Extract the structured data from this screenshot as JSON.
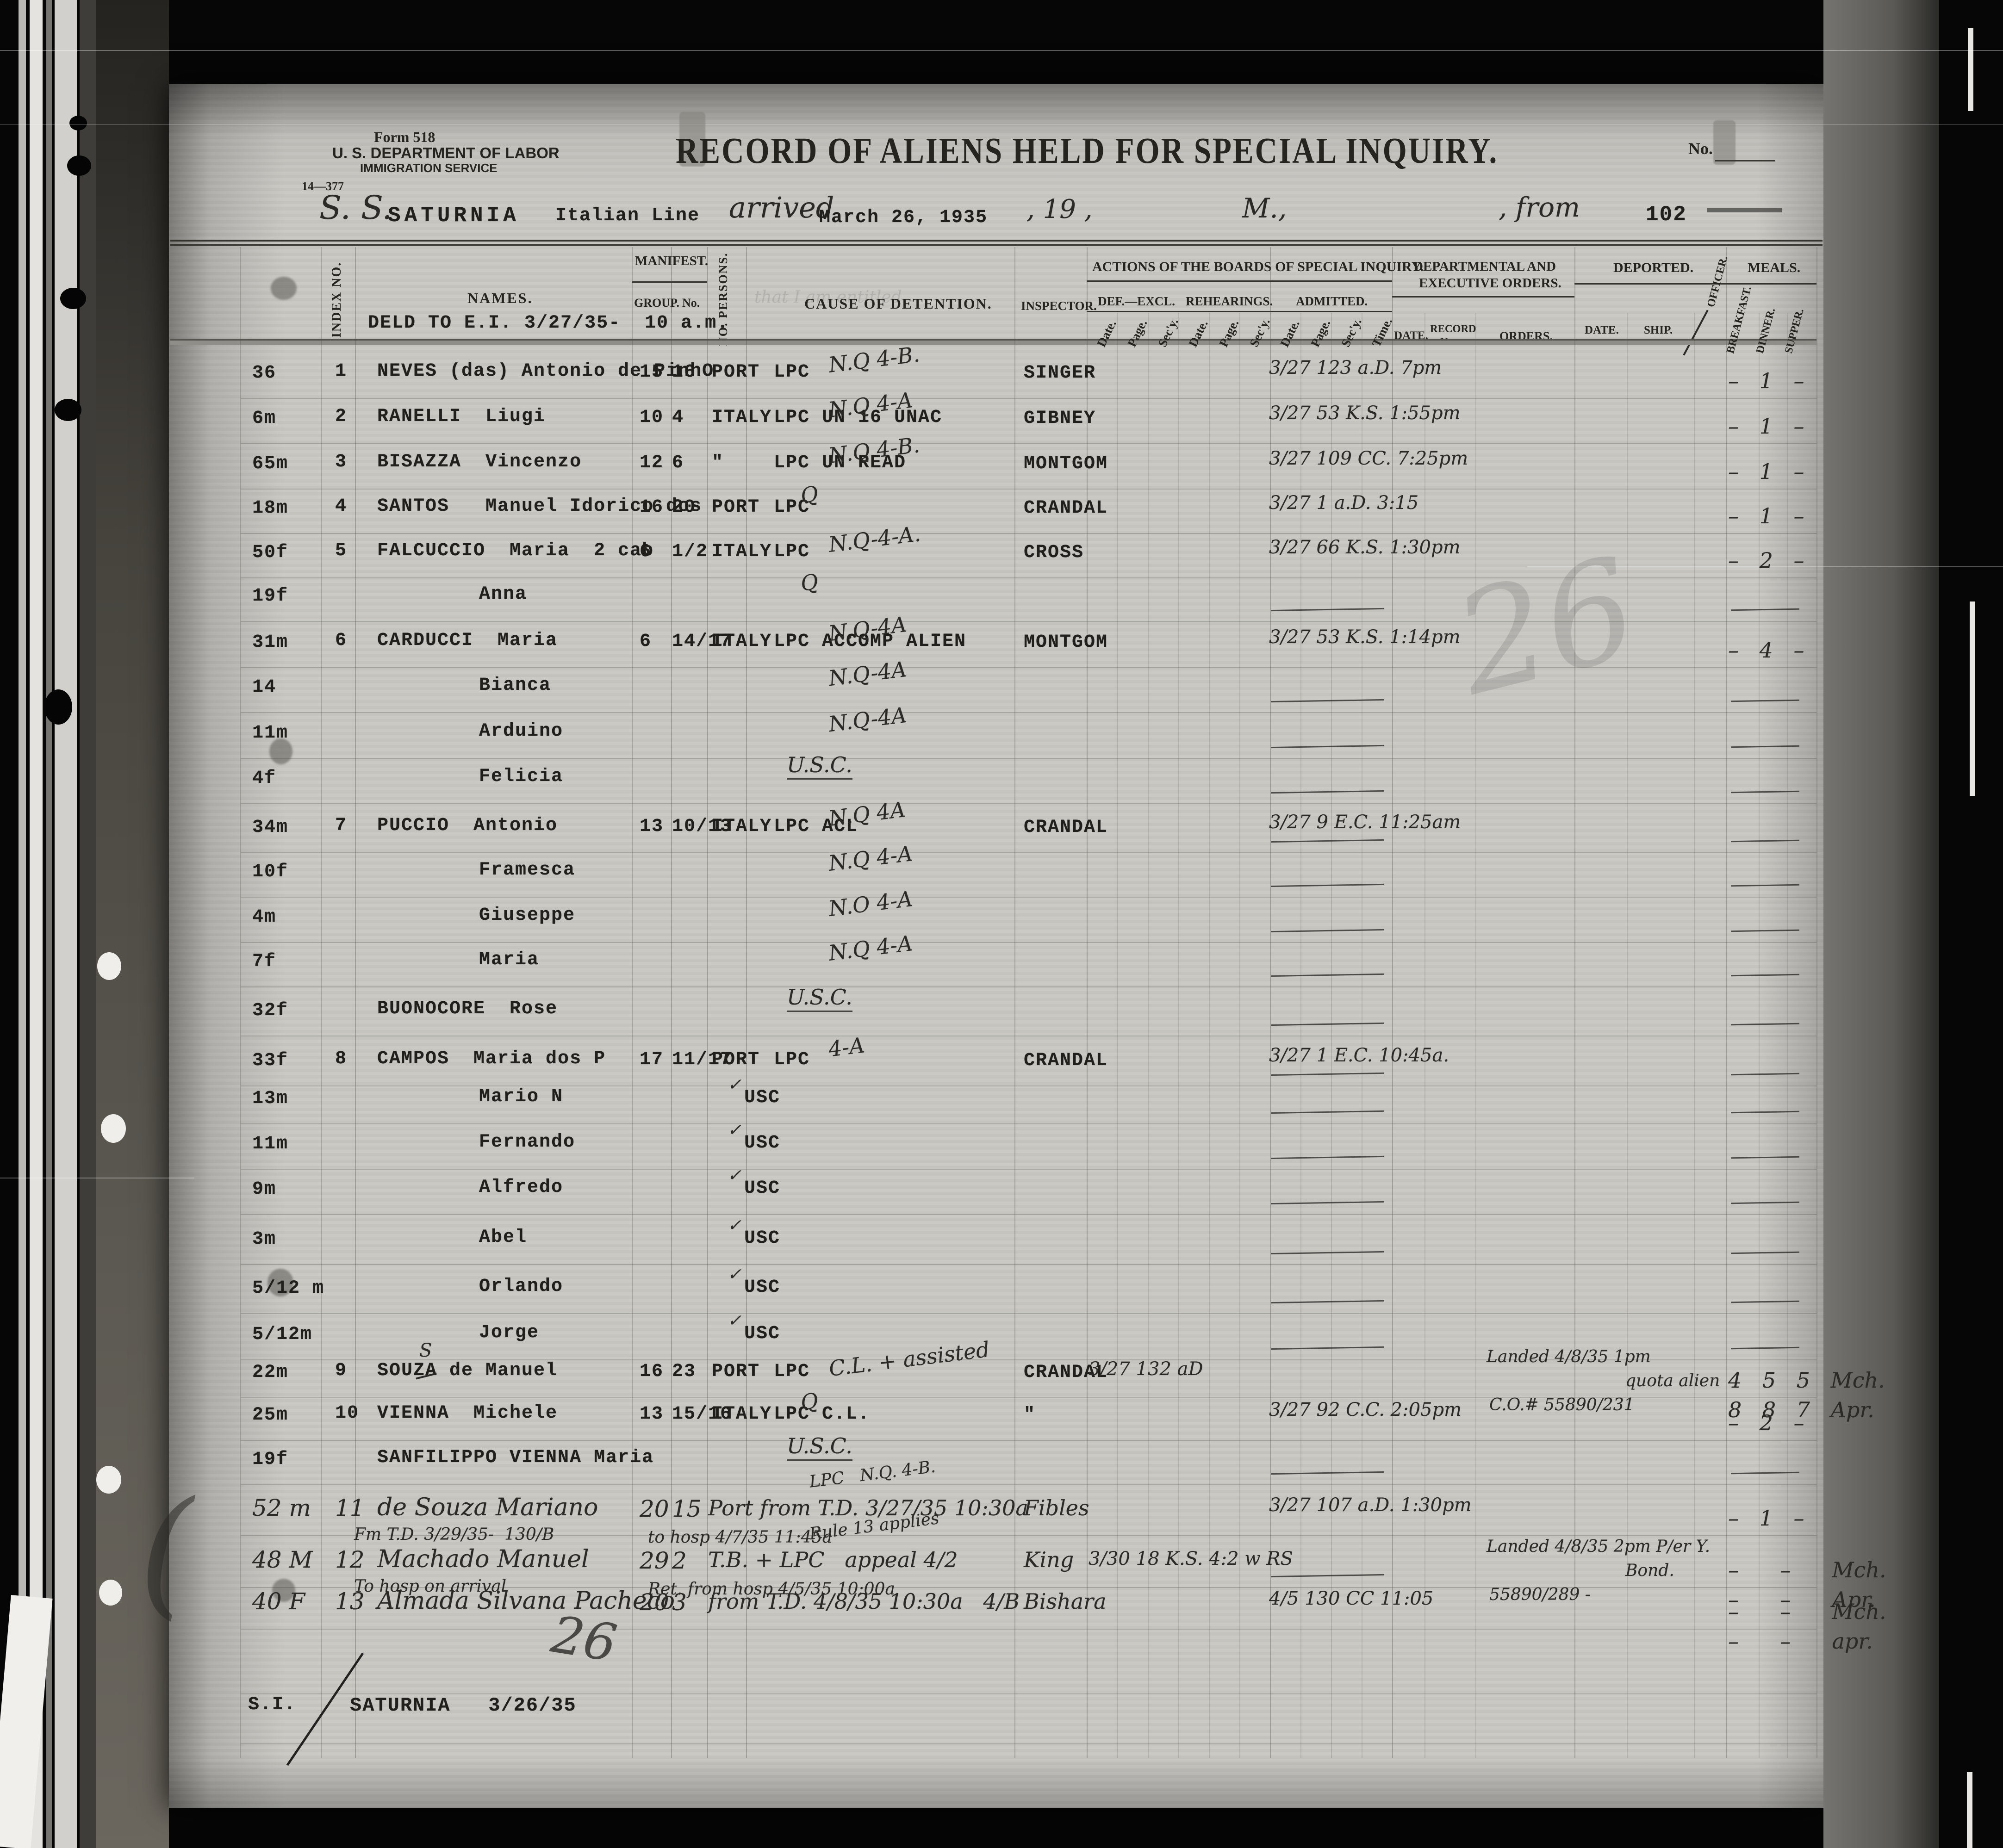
{
  "scan": {
    "form_lines": [
      "Form 518",
      "U. S. DEPARTMENT OF LABOR",
      "IMMIGRATION SERVICE"
    ],
    "form_number": "14—377",
    "title": "RECORD OF ALIENS HELD FOR SPECIAL INQUIRY.",
    "no_label": "No.",
    "ship_prefix": "S. S.",
    "ship_name": "SATURNIA",
    "ship_line": "Italian Line",
    "arrived_label": "arrived",
    "arrived_date": "March 26, 1935",
    "year_fragment": ", 19 ,",
    "meridian": "M.,",
    "from_label": ", from",
    "page_number": "102",
    "deld_note": "DELD TO E.I. 3/27/35-  10 a.m."
  },
  "table": {
    "headers": {
      "index": "INDEX NO.",
      "names": "NAMES.",
      "manifest": "MANIFEST.",
      "group": "GROUP.",
      "no": "No.",
      "persons": "NO. PERSONS.",
      "cause": "CAUSE OF DETENTION.",
      "inspector": "INSPECTOR.",
      "actions": "ACTIONS OF THE BOARDS OF SPECIAL INQUIRY.",
      "def_excl": "DEF.—EXCL.",
      "rehearings": "REHEARINGS.",
      "admitted": "ADMITTED.",
      "date": "Date.",
      "page": "Page.",
      "secy": "Sec'y.",
      "time": "Time.",
      "dept1": "DEPARTMENTAL AND",
      "dept2": "EXECUTIVE ORDERS.",
      "date_caps": "DATE.",
      "record1": "RECORD",
      "record2": "No.",
      "orders": "ORDERS.",
      "deported": "DEPORTED.",
      "ship": "SHIP.",
      "officer": "OFFICER.",
      "meals": "MEALS.",
      "breakfast": "BREAKFAST.",
      "dinner": "DINNER.",
      "supper": "SUPPER."
    },
    "rows": [
      {
        "age": "36",
        "idx": "1",
        "name": "NEVES (das) Antonio de PinhO",
        "group": "15",
        "no": "16",
        "port": "PORT",
        "cause": "LPC",
        "hw": "N.Q 4-B.",
        "insp": "SINGER",
        "adm": "3/27 123 a.D. 7pm",
        "meals": "– 1 –"
      },
      {
        "age": "6m",
        "idx": "2",
        "name": "RANELLI  Liugi",
        "group": "10",
        "no": "4",
        "port": "ITALY",
        "cause": "LPC UN 16 UNAC",
        "hw": "N.Q 4-A",
        "insp": "GIBNEY",
        "adm": "3/27 53 K.S. 1:55pm",
        "meals": "– 1 –"
      },
      {
        "age": "65m",
        "idx": "3",
        "name": "BISAZZA  Vincenzo",
        "group": "12",
        "no": "6",
        "port": "\"",
        "cause": "LPC UN READ",
        "hw": "N.Q 4-B.",
        "insp": "MONTGOM",
        "adm": "3/27 109 CC. 7:25pm",
        "meals": "– 1 –"
      },
      {
        "age": "18m",
        "idx": "4",
        "name": "SANTOS   Manuel Idorico dos",
        "group": "16",
        "no": "20",
        "port": "PORT",
        "cause": "LPC",
        "hw": "Q",
        "insp": "CRANDAL",
        "adm": "3/27 1 a.D. 3:15",
        "meals": "– 1 –"
      },
      {
        "age": "50f",
        "idx": "5",
        "name": "FALCUCCIO  Maria  2 cab",
        "group": "6",
        "no": "1/2",
        "port": "ITALY",
        "cause": "LPC",
        "hw": "N.Q-4-A.",
        "insp": "CROSS",
        "adm": "3/27 66 K.S. 1:30pm",
        "meals": "– 2 –"
      },
      {
        "age": "19f",
        "name": "Anna",
        "ind": 1,
        "hw": "Q",
        "line": 1
      },
      {
        "age": "31m",
        "idx": "6",
        "name": "CARDUCCI  Maria",
        "group": "6",
        "no": "14/17",
        "port": "ITALY",
        "cause": "LPC ACCOMP ALIEN",
        "hw": "N.Q-4A",
        "insp": "MONTGOM",
        "adm": "3/27 53 K.S. 1:14pm",
        "meals": "– 4 –"
      },
      {
        "age": "14",
        "name": "Bianca",
        "ind": 1,
        "hw": "N.Q-4A",
        "line": 1
      },
      {
        "age": "11m",
        "name": "Arduino",
        "ind": 1,
        "hw": "N.Q-4A",
        "line": 1
      },
      {
        "age": "4f",
        "name": "Felicia",
        "ind": 1,
        "hw": "U.S.C.",
        "u": 1,
        "line": 1
      },
      {
        "age": "34m",
        "idx": "7",
        "name": "PUCCIO  Antonio",
        "group": "13",
        "no": "10/13",
        "port": "ITALY",
        "cause": "LPC ACL",
        "hw": "N.Q 4A",
        "insp": "CRANDAL",
        "adm": "3/27 9 E.C. 11:25am",
        "line": 1
      },
      {
        "age": "10f",
        "name": "Framesca",
        "ind": 1,
        "hw": "N.Q 4-A",
        "line": 1
      },
      {
        "age": "4m",
        "name": "Giuseppe",
        "ind": 1,
        "hw": "N.O 4-A",
        "line": 1
      },
      {
        "age": "7f",
        "name": "Maria",
        "ind": 1,
        "hw": "N.Q 4-A",
        "line": 1
      },
      {
        "age": "32f",
        "name": "BUONOCORE  Rose",
        "hw": "U.S.C.",
        "u": 1,
        "line": 1
      },
      {
        "age": "33f",
        "idx": "8",
        "name": "CAMPOS  Maria dos P",
        "group": "17",
        "no": "11/17",
        "port": "PORT",
        "cause": "LPC",
        "hw": "4-A",
        "insp": "CRANDAL",
        "adm": "3/27 1 E.C. 10:45a.",
        "line": 1
      },
      {
        "age": "13m",
        "name": "Mario N",
        "ind": 1,
        "cause": "USC",
        "check": 1,
        "line": 1
      },
      {
        "age": "11m",
        "name": "Fernando",
        "ind": 1,
        "cause": "USC",
        "check": 1,
        "line": 1
      },
      {
        "age": "9m",
        "name": "Alfredo",
        "ind": 1,
        "cause": "USC",
        "check": 1,
        "line": 1
      },
      {
        "age": "3m",
        "name": "Abel",
        "ind": 1,
        "cause": "USC",
        "check": 1,
        "line": 1
      },
      {
        "age": "5/12 m",
        "name": "Orlando",
        "ind": 1,
        "cause": "USC",
        "check": 1,
        "line": 1
      },
      {
        "age": "5/12m",
        "name": "Jorge",
        "ind": 1,
        "cause": "USC",
        "check": 1,
        "line": 1
      },
      {
        "age": "22m",
        "idx": "9",
        "name": "SOUZA de Manuel",
        "group": "16",
        "no": "23",
        "port": "PORT",
        "cause": "LPC",
        "hw": "C.L. + assisted",
        "insp": "CRANDAL",
        "defexcl": "3/27 132 aD",
        "orders": [
          "Landed 4/8/35 1pm",
          "quota alien",
          "C.O.# 55890/231"
        ],
        "meals": "4 5 5 Mch.",
        "meals2": "8 8 7 Apr."
      },
      {
        "age": "25m",
        "idx": "10",
        "name": "VIENNA  Michele",
        "group": "13",
        "no": "15/16",
        "port": "ITALY",
        "cause": "LPC C.L.",
        "hw": "Q",
        "insp": "\"",
        "adm": "3/27 92 C.C. 2:05pm",
        "meals": "– 2 –"
      },
      {
        "age": "19f",
        "name": "SANFILIPPO VIENNA Maria",
        "hw": "U.S.C.",
        "u": 1,
        "line": 1
      },
      {
        "hwrow": 1,
        "age": "52 m",
        "idx": "11",
        "name": "de Souza Mariano",
        "sub": [
          "Fm T.D. 3/29/35-  130/B",
          "to hosp 4/7/35 11:45a"
        ],
        "group": "20",
        "no": "15",
        "hw": "Port from T.D. 3/27/35 10:30a",
        "hw2": "LPC   N.Q. 4-B.",
        "insp": "Fibles",
        "adm": "3/27 107 a.D. 1:30pm",
        "meals": "– 1 –"
      },
      {
        "hwrow": 1,
        "age": "48 M",
        "idx": "12",
        "name": "Machado Manuel",
        "sub": [
          "To hosp on arrival",
          "Ret. from hosp 4/5/35 10:00a"
        ],
        "group": "29",
        "no": "2",
        "hw": "T.B. + LPC   appeal 4/2",
        "hw2": "Rule 13 applies",
        "insp": "King",
        "defexcl": "3/30 18 K.S. 4:2 w RS",
        "orders": [
          "Landed 4/8/35 2pm P/er Y.",
          "Bond.",
          "55890/289 -"
        ],
        "meals": "–  –  Mch.",
        "meals2": "–  –  Apr.",
        "aline": 1
      },
      {
        "hwrow": 1,
        "age": "40 F",
        "idx": "13",
        "name": "Almada Silvana Pacheco",
        "group": "20",
        "no": "3",
        "hw": "from T.D. 4/8/35 10:30a   4/B",
        "insp": "Bishara",
        "adm": "4/5 130 CC 11:05",
        "meals": "–  –  Mch.",
        "meals2": "–  –  apr."
      }
    ]
  },
  "annotations": {
    "ghost": "that I am entitled",
    "souza_s": "S",
    "pencil_26": "26",
    "footer_mark": "26"
  },
  "footer": {
    "si": "S.I.",
    "ship_date": "SATURNIA   3/26/35"
  }
}
